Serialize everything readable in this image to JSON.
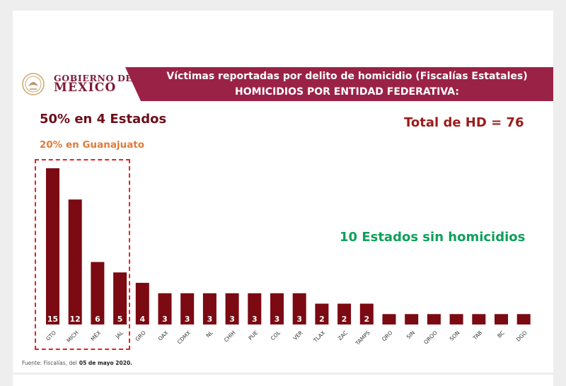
{
  "header": {
    "logo_line1": "GOBIERNO DE",
    "logo_line2": "MÉXICO",
    "title_line1": "Víctimas reportadas por delito de homicidio (Fiscalías Estatales)",
    "title_line2": "HOMICIDIOS POR ENTIDAD FEDERATIVA:"
  },
  "annotations": {
    "headline": "50% en 4 Estados",
    "subheadline": "20% en Guanajuato",
    "total": "Total de HD = 76",
    "zero_note": "10 Estados sin homicidios"
  },
  "footer": {
    "source_text": "Fuente: Fiscalías, del",
    "source_date": "05 de mayo 2020."
  },
  "colors": {
    "bar": "#7b0a12",
    "header_band": "#9b2247",
    "highlight_border": "#e0242a",
    "green_note": "#0ea05a",
    "orange_note": "#e07b39"
  },
  "chart_data": {
    "type": "bar",
    "categories": [
      "GTO",
      "MICH",
      "MÉX",
      "JAL",
      "GRO",
      "OAX",
      "CDMX",
      "NL",
      "CHIH",
      "PUE",
      "COL",
      "VER",
      "TLAX",
      "ZAC",
      "TAMPS",
      "QRO",
      "SIN",
      "QROO",
      "SON",
      "TAB",
      "BC",
      "DGO"
    ],
    "values": [
      15,
      12,
      6,
      5,
      4,
      3,
      3,
      3,
      3,
      3,
      3,
      3,
      2,
      2,
      2,
      1,
      1,
      1,
      1,
      1,
      1,
      1
    ],
    "data_labels": [
      "15",
      "12",
      "6",
      "5",
      "4",
      "3",
      "3",
      "3",
      "3",
      "3",
      "3",
      "3",
      "2",
      "2",
      "2",
      "",
      "",
      "",
      "",
      "",
      "",
      ""
    ],
    "title": "",
    "xlabel": "",
    "ylabel": "",
    "ylim": [
      0,
      15
    ],
    "grid": false,
    "legend": "none"
  }
}
